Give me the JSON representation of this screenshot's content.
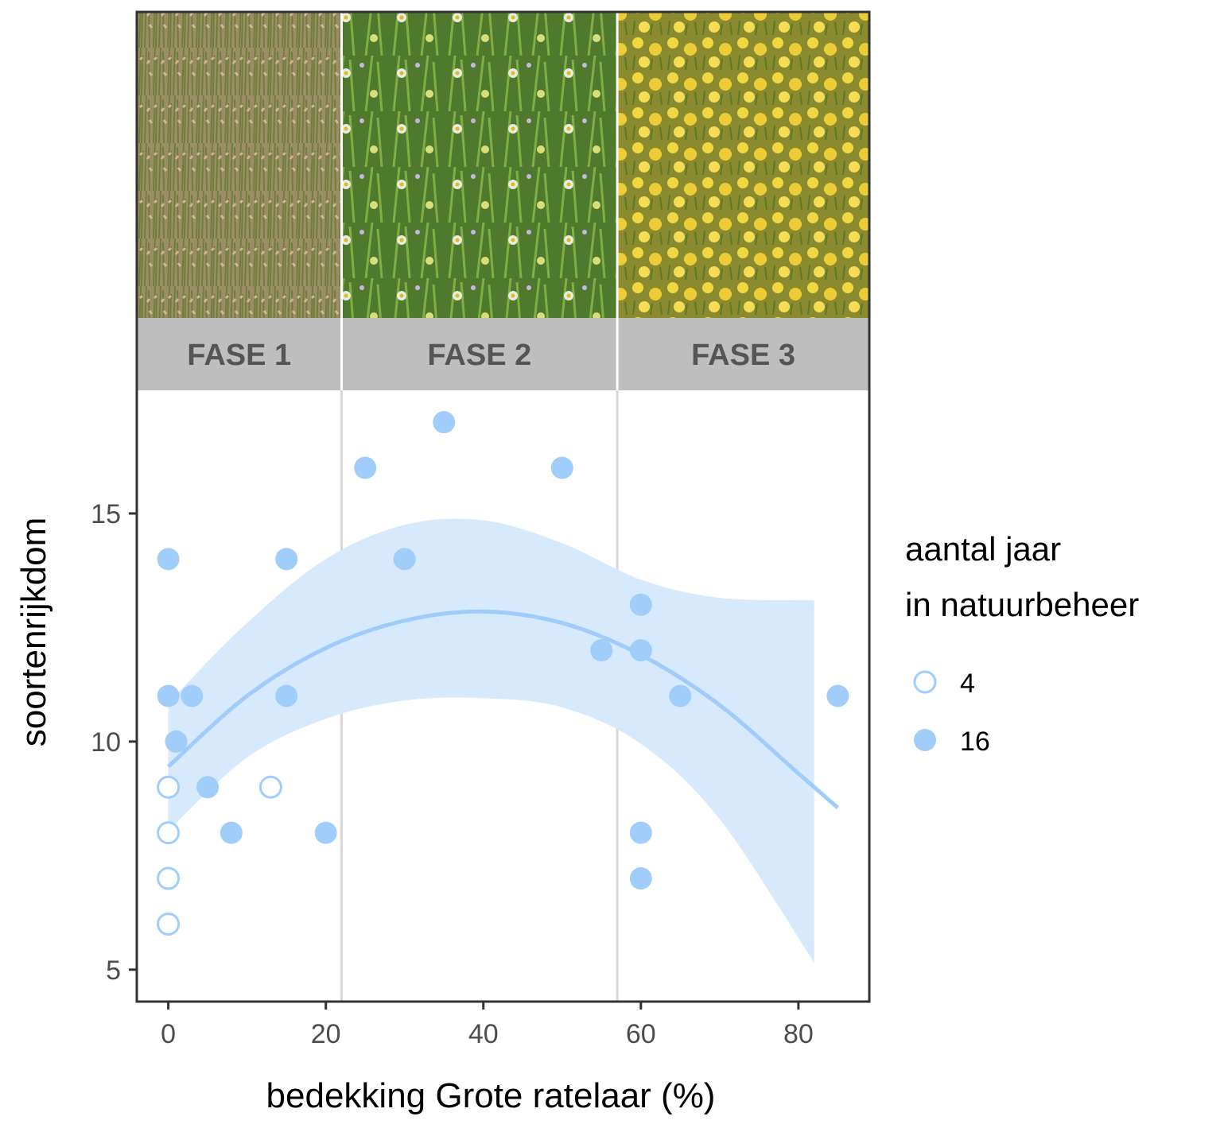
{
  "chart_data": {
    "type": "scatter",
    "xlabel": "bedekking Grote ratelaar (%)",
    "ylabel": "soortenrijkdom",
    "xlim": [
      -4,
      89
    ],
    "ylim": [
      4.3,
      17.7
    ],
    "x_ticks": [
      0,
      20,
      40,
      60,
      80
    ],
    "y_ticks": [
      5,
      10,
      15
    ],
    "phase_boundaries": [
      22,
      57
    ],
    "phases": [
      {
        "label": "FASE 1",
        "x_start": -4,
        "x_end": 22,
        "photo": "tall-grass-photo"
      },
      {
        "label": "FASE 2",
        "x_start": 22,
        "x_end": 57,
        "photo": "flowering-meadow-photo"
      },
      {
        "label": "FASE 3",
        "x_start": 57,
        "x_end": 89,
        "photo": "yellow-rattle-field-photo"
      }
    ],
    "legend": {
      "title_lines": [
        "aantal jaar",
        "in natuurbeheer"
      ],
      "entries": [
        {
          "label": "4",
          "style": "open"
        },
        {
          "label": "16",
          "style": "filled"
        }
      ]
    },
    "colors": {
      "point": "#a0cdfa",
      "ribbon": "#d7e9fc",
      "line": "#9fccfa",
      "phase_strip": "#bebebe",
      "phase_text": "#555555",
      "divider": "#d9d9d9",
      "frame": "#333333"
    },
    "series": [
      {
        "name": "4",
        "style": "open",
        "points": [
          [
            0,
            9
          ],
          [
            0,
            8
          ],
          [
            0,
            7
          ],
          [
            0,
            6
          ],
          [
            13,
            9
          ]
        ]
      },
      {
        "name": "16",
        "style": "filled",
        "points": [
          [
            0,
            14
          ],
          [
            0,
            11
          ],
          [
            1,
            10
          ],
          [
            3,
            11
          ],
          [
            5,
            9
          ],
          [
            8,
            8
          ],
          [
            15,
            14
          ],
          [
            15,
            11
          ],
          [
            20,
            8
          ],
          [
            25,
            16
          ],
          [
            30,
            14
          ],
          [
            35,
            17
          ],
          [
            50,
            16
          ],
          [
            55,
            12
          ],
          [
            60,
            13
          ],
          [
            60,
            12
          ],
          [
            60,
            8
          ],
          [
            60,
            7
          ],
          [
            65,
            11
          ],
          [
            85,
            11
          ]
        ]
      }
    ],
    "fit": {
      "type": "quadratic",
      "x_range": [
        0,
        85
      ],
      "curve": [
        [
          0,
          9.45
        ],
        [
          10,
          11.0
        ],
        [
          20,
          12.05
        ],
        [
          30,
          12.65
        ],
        [
          40,
          12.85
        ],
        [
          50,
          12.6
        ],
        [
          60,
          11.9
        ],
        [
          70,
          10.8
        ],
        [
          80,
          9.3
        ],
        [
          85,
          8.55
        ]
      ],
      "ribbon_x_range": [
        0,
        82
      ],
      "ribbon_upper": [
        [
          0,
          10.85
        ],
        [
          10,
          12.6
        ],
        [
          20,
          14.0
        ],
        [
          30,
          14.75
        ],
        [
          40,
          14.85
        ],
        [
          50,
          14.35
        ],
        [
          60,
          13.55
        ],
        [
          70,
          13.15
        ],
        [
          82,
          13.1
        ]
      ],
      "ribbon_lower": [
        [
          0,
          8.05
        ],
        [
          10,
          9.65
        ],
        [
          20,
          10.5
        ],
        [
          30,
          10.9
        ],
        [
          40,
          10.95
        ],
        [
          50,
          10.75
        ],
        [
          60,
          9.95
        ],
        [
          70,
          8.3
        ],
        [
          82,
          5.15
        ]
      ]
    }
  }
}
